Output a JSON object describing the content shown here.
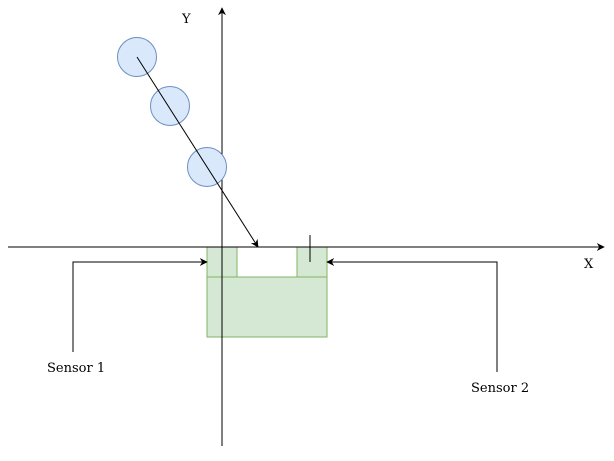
{
  "axes": {
    "x_label": "X",
    "y_label": "Y"
  },
  "sensors": [
    {
      "label": "Sensor 1"
    },
    {
      "label": "Sensor 2"
    }
  ],
  "colors": {
    "ball_fill": "#dae8fc",
    "ball_stroke": "#6c8ebf",
    "block_fill": "#d5e8d4",
    "block_stroke": "#82b366",
    "line": "#000000"
  }
}
